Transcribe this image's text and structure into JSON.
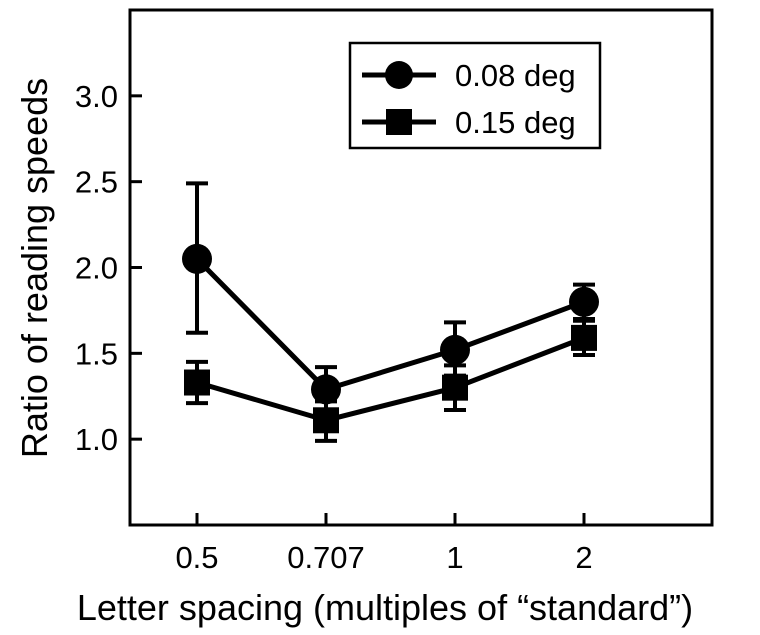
{
  "chart_data": {
    "type": "line",
    "categories": [
      "0.5",
      "0.707",
      "1",
      "2"
    ],
    "xlabel": "Letter spacing (multiples of “standard”)",
    "ylabel": "Ratio of reading speeds",
    "ylim": [
      0.5,
      3.5
    ],
    "yticks": [
      "1.0",
      "1.5",
      "2.0",
      "2.5",
      "3.0"
    ],
    "legend_position": "top-right",
    "grid": false,
    "series": [
      {
        "name": "0.08 deg",
        "marker": "circle",
        "values": [
          2.05,
          1.29,
          1.52,
          1.8
        ],
        "err_low": [
          1.62,
          1.17,
          1.37,
          1.7
        ],
        "err_high": [
          2.49,
          1.42,
          1.68,
          1.9
        ]
      },
      {
        "name": "0.15 deg",
        "marker": "square",
        "values": [
          1.33,
          1.11,
          1.3,
          1.59
        ],
        "err_low": [
          1.21,
          0.99,
          1.17,
          1.49
        ],
        "err_high": [
          1.45,
          1.22,
          1.43,
          1.69
        ]
      }
    ]
  }
}
